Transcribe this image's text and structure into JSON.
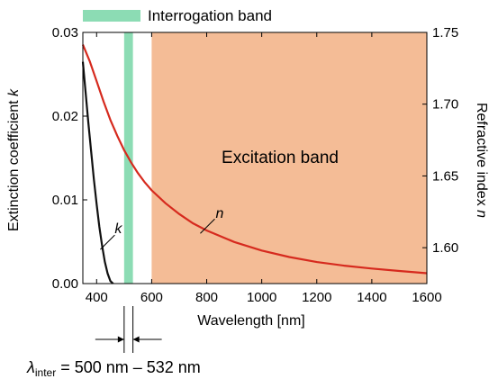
{
  "chart_data": {
    "type": "line",
    "title": "",
    "xlabel": "Wavelength [nm]",
    "ylabel_left_prefix": "Extinction coefficient ",
    "ylabel_left_var": "k",
    "ylabel_right_prefix": "Refractive index ",
    "ylabel_right_var": "n",
    "xlim": [
      350,
      1600
    ],
    "ylim_left": [
      0,
      0.03
    ],
    "ylim_right": [
      1.575,
      1.75
    ],
    "x_ticks": [
      400,
      600,
      800,
      1000,
      1200,
      1400,
      1600
    ],
    "x_tick_labels": [
      "400",
      "600",
      "800",
      "1000",
      "1200",
      "1400",
      "1600"
    ],
    "y_left_ticks": [
      0,
      0.01,
      0.02,
      0.03
    ],
    "y_left_tick_labels": [
      "0.00",
      "0.01",
      "0.02",
      "0.03"
    ],
    "y_right_ticks": [
      1.6,
      1.65,
      1.7,
      1.75
    ],
    "y_right_tick_labels": [
      "1.60",
      "1.65",
      "1.70",
      "1.75"
    ],
    "grid": false,
    "series": [
      {
        "name": "k",
        "axis": "left",
        "color": "#111111",
        "x": [
          350,
          360,
          370,
          380,
          390,
          400,
          410,
          420,
          430,
          440,
          450,
          460
        ],
        "y": [
          0.0265,
          0.0228,
          0.0192,
          0.0158,
          0.0125,
          0.0095,
          0.0068,
          0.0045,
          0.0026,
          0.0012,
          0.0003,
          0.0
        ]
      },
      {
        "name": "n",
        "axis": "right",
        "color": "#d62a1e",
        "x": [
          350,
          375,
          400,
          425,
          450,
          475,
          500,
          525,
          550,
          575,
          600,
          650,
          700,
          750,
          800,
          900,
          1000,
          1100,
          1200,
          1300,
          1400,
          1500,
          1600
        ],
        "y": [
          1.7415,
          1.73,
          1.716,
          1.702,
          1.689,
          1.678,
          1.668,
          1.6595,
          1.652,
          1.6455,
          1.64,
          1.631,
          1.6235,
          1.617,
          1.612,
          1.604,
          1.598,
          1.5935,
          1.59,
          1.5875,
          1.5855,
          1.5838,
          1.5822
        ]
      }
    ],
    "bands": [
      {
        "name": "Interrogation band",
        "x_range": [
          500,
          532
        ],
        "color": "#8cdcb4"
      },
      {
        "name": "Excitation band",
        "x_range": [
          600,
          1600
        ],
        "color": "#f4bc96"
      }
    ],
    "legend": {
      "label": "Interrogation band",
      "placement": "top"
    },
    "annotations": {
      "excitation_label": "Excitation band",
      "k_label": "k",
      "n_label": "n",
      "lambda_symbol": "λ",
      "lambda_subscript": "inter",
      "lambda_value": " = 500 nm – 532 nm"
    }
  }
}
